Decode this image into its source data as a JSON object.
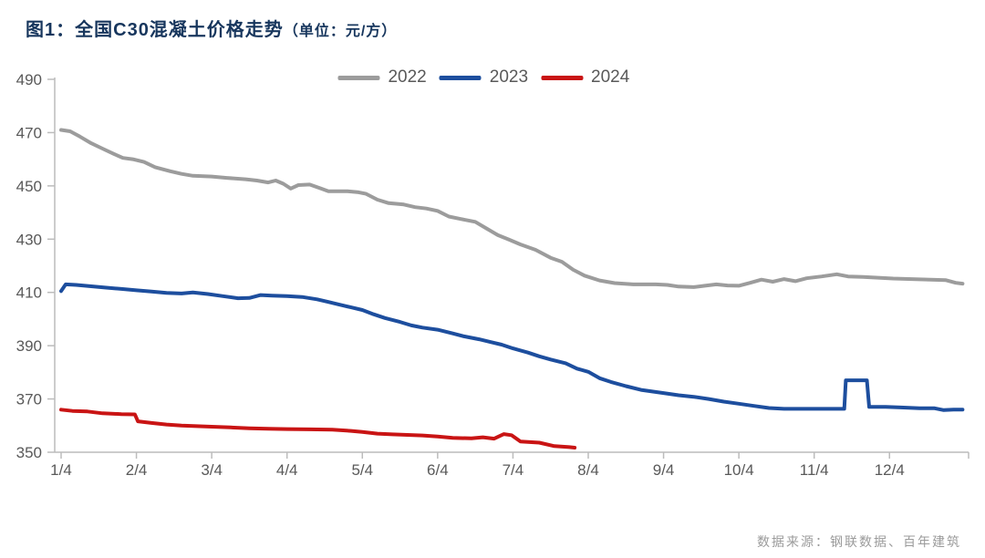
{
  "header": {
    "title_main": "图1：全国C30混凝土价格走势",
    "title_unit": "（单位：元/方）"
  },
  "footer": {
    "source": "数据来源：钢联数据、百年建筑"
  },
  "colors": {
    "title": "#17365d",
    "axis_line": "#bcbcbc",
    "tick_text": "#595959",
    "legend_text": "#595959",
    "source_text": "#9b9b9b",
    "series_2022": "#9c9c9c",
    "series_2023": "#1d4e9e",
    "series_2024": "#c91414"
  },
  "chart_data": {
    "type": "line",
    "title": "全国C30混凝土价格走势",
    "ylabel": "元/方",
    "legend_position": "top",
    "grid": false,
    "x_axis": {
      "tick_labels": [
        "1/4",
        "2/4",
        "3/4",
        "4/4",
        "5/4",
        "6/4",
        "7/4",
        "8/4",
        "9/4",
        "10/4",
        "11/4",
        "12/4"
      ],
      "tick_months": [
        1,
        2,
        3,
        4,
        5,
        6,
        7,
        8,
        9,
        10,
        11,
        12
      ],
      "range": [
        1,
        13
      ]
    },
    "y_axis": {
      "ticks": [
        350,
        370,
        390,
        410,
        430,
        450,
        470,
        490
      ],
      "range": [
        350,
        490
      ]
    },
    "series": [
      {
        "name": "2022",
        "color": "#9c9c9c",
        "points": [
          [
            1.0,
            471
          ],
          [
            1.12,
            470.5
          ],
          [
            1.25,
            468.5
          ],
          [
            1.4,
            466
          ],
          [
            1.55,
            464
          ],
          [
            1.7,
            462
          ],
          [
            1.82,
            460.5
          ],
          [
            1.95,
            460
          ],
          [
            2.1,
            459
          ],
          [
            2.25,
            457
          ],
          [
            2.45,
            455.5
          ],
          [
            2.6,
            454.5
          ],
          [
            2.75,
            453.8
          ],
          [
            3.0,
            453.5
          ],
          [
            3.2,
            453
          ],
          [
            3.45,
            452.5
          ],
          [
            3.6,
            452
          ],
          [
            3.75,
            451.3
          ],
          [
            3.85,
            452
          ],
          [
            3.95,
            450.8
          ],
          [
            4.05,
            449
          ],
          [
            4.15,
            450.3
          ],
          [
            4.3,
            450.5
          ],
          [
            4.45,
            449
          ],
          [
            4.55,
            448
          ],
          [
            4.8,
            448
          ],
          [
            4.95,
            447.6
          ],
          [
            5.05,
            447
          ],
          [
            5.2,
            444.8
          ],
          [
            5.35,
            443.5
          ],
          [
            5.55,
            443
          ],
          [
            5.7,
            442
          ],
          [
            5.85,
            441.5
          ],
          [
            6.0,
            440.6
          ],
          [
            6.15,
            438.5
          ],
          [
            6.3,
            437.6
          ],
          [
            6.5,
            436.5
          ],
          [
            6.65,
            434
          ],
          [
            6.8,
            431.5
          ],
          [
            6.95,
            429.8
          ],
          [
            7.1,
            428
          ],
          [
            7.3,
            426
          ],
          [
            7.5,
            423
          ],
          [
            7.65,
            421.5
          ],
          [
            7.8,
            418.5
          ],
          [
            7.95,
            416.3
          ],
          [
            8.15,
            414.5
          ],
          [
            8.35,
            413.5
          ],
          [
            8.6,
            413
          ],
          [
            8.9,
            413
          ],
          [
            9.05,
            412.8
          ],
          [
            9.2,
            412.2
          ],
          [
            9.4,
            412
          ],
          [
            9.55,
            412.5
          ],
          [
            9.7,
            413
          ],
          [
            9.85,
            412.6
          ],
          [
            10.0,
            412.5
          ],
          [
            10.15,
            413.6
          ],
          [
            10.3,
            414.8
          ],
          [
            10.45,
            414
          ],
          [
            10.6,
            415
          ],
          [
            10.75,
            414.2
          ],
          [
            10.9,
            415.3
          ],
          [
            11.1,
            416
          ],
          [
            11.3,
            416.8
          ],
          [
            11.45,
            416
          ],
          [
            11.65,
            415.8
          ],
          [
            11.85,
            415.5
          ],
          [
            12.05,
            415.2
          ],
          [
            12.3,
            415
          ],
          [
            12.55,
            414.8
          ],
          [
            12.75,
            414.6
          ],
          [
            12.88,
            413.6
          ],
          [
            12.97,
            413.3
          ]
        ]
      },
      {
        "name": "2023",
        "color": "#1d4e9e",
        "points": [
          [
            1.0,
            410.5
          ],
          [
            1.06,
            413
          ],
          [
            1.2,
            412.8
          ],
          [
            1.4,
            412.3
          ],
          [
            1.6,
            411.8
          ],
          [
            1.8,
            411.3
          ],
          [
            2.0,
            410.8
          ],
          [
            2.2,
            410.3
          ],
          [
            2.4,
            409.8
          ],
          [
            2.6,
            409.6
          ],
          [
            2.75,
            410
          ],
          [
            2.95,
            409.4
          ],
          [
            3.15,
            408.6
          ],
          [
            3.35,
            407.8
          ],
          [
            3.5,
            407.9
          ],
          [
            3.65,
            409
          ],
          [
            3.8,
            408.8
          ],
          [
            4.0,
            408.6
          ],
          [
            4.2,
            408.3
          ],
          [
            4.4,
            407.4
          ],
          [
            4.55,
            406.4
          ],
          [
            4.7,
            405.4
          ],
          [
            4.85,
            404.4
          ],
          [
            5.0,
            403.4
          ],
          [
            5.15,
            401.8
          ],
          [
            5.3,
            400.4
          ],
          [
            5.5,
            398.9
          ],
          [
            5.65,
            397.6
          ],
          [
            5.8,
            396.8
          ],
          [
            6.0,
            396
          ],
          [
            6.2,
            394.6
          ],
          [
            6.35,
            393.5
          ],
          [
            6.55,
            392.4
          ],
          [
            6.7,
            391.4
          ],
          [
            6.85,
            390.4
          ],
          [
            7.0,
            389
          ],
          [
            7.2,
            387.4
          ],
          [
            7.35,
            386
          ],
          [
            7.5,
            384.8
          ],
          [
            7.7,
            383.4
          ],
          [
            7.85,
            381.4
          ],
          [
            8.0,
            380.2
          ],
          [
            8.15,
            377.8
          ],
          [
            8.3,
            376.4
          ],
          [
            8.5,
            374.8
          ],
          [
            8.7,
            373.4
          ],
          [
            8.85,
            372.8
          ],
          [
            9.0,
            372.2
          ],
          [
            9.2,
            371.4
          ],
          [
            9.4,
            370.8
          ],
          [
            9.6,
            370
          ],
          [
            9.8,
            369
          ],
          [
            10.0,
            368.2
          ],
          [
            10.2,
            367.4
          ],
          [
            10.4,
            366.6
          ],
          [
            10.6,
            366.3
          ],
          [
            10.9,
            366.3
          ],
          [
            11.15,
            366.3
          ],
          [
            11.4,
            366.3
          ],
          [
            11.42,
            377
          ],
          [
            11.7,
            377
          ],
          [
            11.73,
            367
          ],
          [
            11.95,
            367
          ],
          [
            12.15,
            366.8
          ],
          [
            12.4,
            366.5
          ],
          [
            12.6,
            366.5
          ],
          [
            12.72,
            365.8
          ],
          [
            12.85,
            366
          ],
          [
            12.97,
            366
          ]
        ]
      },
      {
        "name": "2024",
        "color": "#c91414",
        "points": [
          [
            1.0,
            366
          ],
          [
            1.15,
            365.5
          ],
          [
            1.35,
            365.3
          ],
          [
            1.55,
            364.6
          ],
          [
            1.8,
            364.3
          ],
          [
            1.98,
            364.2
          ],
          [
            2.02,
            361.6
          ],
          [
            2.2,
            361
          ],
          [
            2.4,
            360.4
          ],
          [
            2.6,
            360
          ],
          [
            2.8,
            359.8
          ],
          [
            3.0,
            359.6
          ],
          [
            3.25,
            359.3
          ],
          [
            3.5,
            359
          ],
          [
            3.75,
            358.8
          ],
          [
            4.0,
            358.7
          ],
          [
            4.3,
            358.6
          ],
          [
            4.6,
            358.5
          ],
          [
            4.85,
            358
          ],
          [
            5.0,
            357.6
          ],
          [
            5.2,
            357
          ],
          [
            5.4,
            356.7
          ],
          [
            5.6,
            356.5
          ],
          [
            5.8,
            356.3
          ],
          [
            6.0,
            355.9
          ],
          [
            6.2,
            355.4
          ],
          [
            6.45,
            355.2
          ],
          [
            6.6,
            355.6
          ],
          [
            6.75,
            355.1
          ],
          [
            6.88,
            356.8
          ],
          [
            6.98,
            356.4
          ],
          [
            7.1,
            354
          ],
          [
            7.35,
            353.6
          ],
          [
            7.55,
            352.3
          ],
          [
            7.75,
            351.9
          ],
          [
            7.82,
            351.7
          ]
        ]
      }
    ]
  }
}
